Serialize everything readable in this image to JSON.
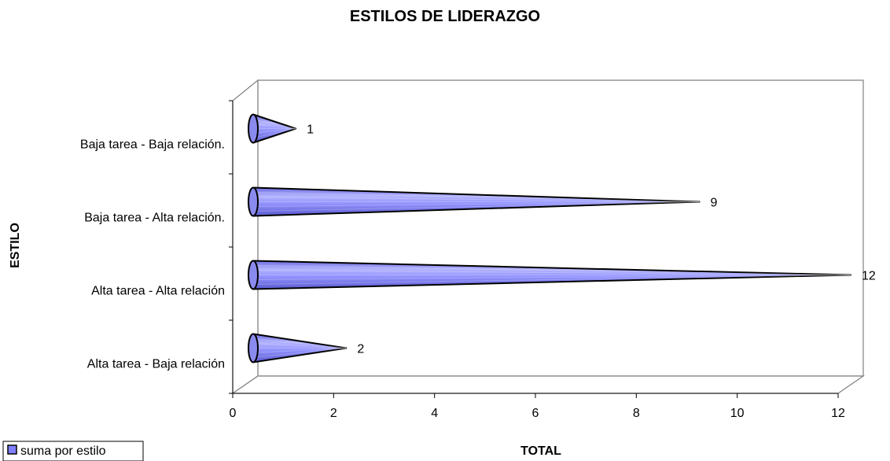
{
  "chart_data": {
    "type": "bar",
    "orientation": "horizontal",
    "bar_shape": "cone",
    "title": "ESTILOS DE LIDERAZGO",
    "xlabel": "TOTAL",
    "ylabel": "ESTILO",
    "categories": [
      "Alta tarea - Baja relación",
      "Alta tarea - Alta relación",
      "Baja tarea - Alta relación.",
      "Baja tarea - Baja relación."
    ],
    "series": [
      {
        "name": "suma por estilo",
        "values": [
          2,
          12,
          9,
          1
        ],
        "color": "#8080ff"
      }
    ],
    "xlim": [
      0,
      12
    ],
    "xticks": [
      0,
      2,
      4,
      6,
      8,
      10,
      12
    ],
    "xtick_labels": [
      "0",
      "2",
      "4",
      "6",
      "8",
      "10",
      "12"
    ],
    "data_labels": [
      "2",
      "12",
      "9",
      "1"
    ],
    "grid": false,
    "legend_position": "bottom-left",
    "projection": "3d"
  }
}
